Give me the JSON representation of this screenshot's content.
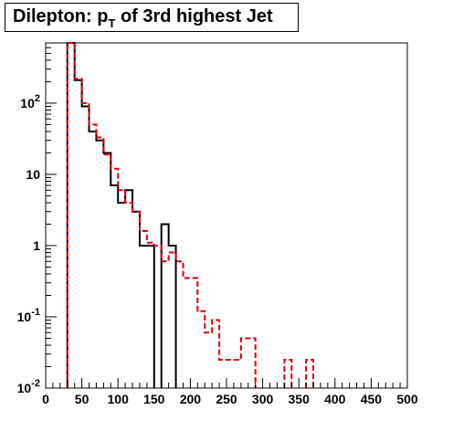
{
  "title": {
    "main": "Dilepton: p",
    "subscript": "T",
    "rest": " of 3rd highest Jet"
  },
  "chart_data": {
    "type": "histogram",
    "xlim": [
      0,
      500
    ],
    "ylim": [
      0.01,
      700
    ],
    "yscale": "log",
    "bin_width": 10,
    "x_ticks": [
      {
        "value": 0,
        "label": "0"
      },
      {
        "value": 50,
        "label": "50"
      },
      {
        "value": 100,
        "label": "100"
      },
      {
        "value": 150,
        "label": "150"
      },
      {
        "value": 200,
        "label": "200"
      },
      {
        "value": 250,
        "label": "250"
      },
      {
        "value": 300,
        "label": "300"
      },
      {
        "value": 350,
        "label": "350"
      },
      {
        "value": 400,
        "label": "400"
      },
      {
        "value": 450,
        "label": "450"
      },
      {
        "value": 500,
        "label": "500"
      }
    ],
    "y_ticks": [
      {
        "value": 0.01,
        "base": "10",
        "exp": "-2"
      },
      {
        "value": 0.1,
        "base": "10",
        "exp": "-1"
      },
      {
        "value": 1,
        "base": "1",
        "exp": ""
      },
      {
        "value": 10,
        "base": "10",
        "exp": ""
      },
      {
        "value": 100,
        "base": "10",
        "exp": "2"
      }
    ],
    "series": [
      {
        "color": "#000000",
        "style": "solid",
        "bins": [
          [
            30,
            40,
            700
          ],
          [
            40,
            50,
            210
          ],
          [
            50,
            60,
            90
          ],
          [
            60,
            70,
            40
          ],
          [
            70,
            80,
            30
          ],
          [
            80,
            90,
            20
          ],
          [
            90,
            100,
            7
          ],
          [
            100,
            110,
            4
          ],
          [
            110,
            120,
            6
          ],
          [
            120,
            130,
            3
          ],
          [
            130,
            140,
            1
          ],
          [
            140,
            150,
            1
          ],
          [
            160,
            170,
            2
          ],
          [
            170,
            180,
            1
          ]
        ]
      },
      {
        "color": "#dd0000",
        "style": "dashed",
        "bins": [
          [
            30,
            40,
            700
          ],
          [
            40,
            50,
            220
          ],
          [
            50,
            60,
            100
          ],
          [
            60,
            70,
            50
          ],
          [
            70,
            80,
            33
          ],
          [
            80,
            90,
            19
          ],
          [
            90,
            100,
            12
          ],
          [
            100,
            110,
            6
          ],
          [
            110,
            120,
            4
          ],
          [
            120,
            130,
            3
          ],
          [
            130,
            140,
            1.6
          ],
          [
            140,
            150,
            1.1
          ],
          [
            150,
            160,
            1
          ],
          [
            160,
            170,
            0.6
          ],
          [
            170,
            180,
            0.8
          ],
          [
            180,
            190,
            0.6
          ],
          [
            190,
            200,
            0.35
          ],
          [
            200,
            210,
            0.35
          ],
          [
            210,
            220,
            0.12
          ],
          [
            220,
            230,
            0.06
          ],
          [
            230,
            240,
            0.09
          ],
          [
            240,
            250,
            0.025
          ],
          [
            250,
            260,
            0.025
          ],
          [
            260,
            270,
            0.025
          ],
          [
            270,
            280,
            0.05
          ],
          [
            280,
            290,
            0.05
          ],
          [
            330,
            340,
            0.025
          ],
          [
            360,
            370,
            0.025
          ]
        ]
      }
    ]
  }
}
